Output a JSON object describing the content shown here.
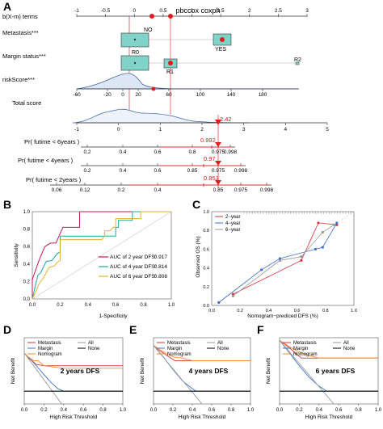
{
  "panels": {
    "A": "A",
    "B": "B",
    "C": "C",
    "D": "D",
    "E": "E",
    "F": "F"
  },
  "colors": {
    "box_fill": "#7fd3c8",
    "box_stroke": "#333333",
    "density_fill": "#dde6f3",
    "density_stroke": "#3f66b5",
    "point_red": "#e31a1c",
    "seg_red": "#d9333a",
    "blue": "#3f6fd0",
    "orange": "#f28e2b",
    "grey": "#999999",
    "black": "#000000",
    "roc_magenta": "#c2185b",
    "roc_teal": "#1fa79b",
    "roc_yellow": "#e6b12a"
  },
  "chart_data": [
    {
      "panel": "A",
      "type": "nomogram",
      "title": "pbccox coxph",
      "points_label": "b(X-m) terms",
      "points_ticks": [
        "-1",
        "-0.5",
        "0",
        "0.5",
        "1",
        "1.5",
        "2",
        "2.5",
        "3"
      ],
      "variables": [
        {
          "name": "Metastasis***",
          "levels": [
            "NO",
            "YES"
          ]
        },
        {
          "name": "Margin status***",
          "levels": [
            "R0",
            "R1",
            "R2"
          ]
        },
        {
          "name": "riskScore***",
          "ticks": [
            "-60",
            "-20",
            "0",
            "20",
            "60",
            "100",
            "140",
            "180"
          ]
        }
      ],
      "total_score": {
        "label": "Total score",
        "ticks": [
          "-1",
          "0",
          "1",
          "2",
          "3",
          "4",
          "5"
        ],
        "value_label": "2.42"
      },
      "survival_axes": [
        {
          "label": "Pr( futime < 6years )",
          "ticks": [
            "0.2",
            "0.4",
            "0.6",
            "0.8",
            "0.975",
            "0.998"
          ],
          "value_label": "0.992"
        },
        {
          "label": "Pr( futime < 4years )",
          "ticks": [
            "0.2",
            "0.4",
            "0.6",
            "0.85",
            "0.975",
            "0.998"
          ],
          "value_label": "0.97"
        },
        {
          "label": "Pr( futime < 2years )",
          "ticks": [
            "0.06",
            "0.12",
            "0.2",
            "0.4",
            "0.85",
            "0.975",
            "0.998"
          ],
          "value_label": "0.853"
        }
      ]
    },
    {
      "panel": "B",
      "type": "line",
      "xlabel": "1-Specificity",
      "ylabel": "Sensitivity",
      "xlim": [
        0,
        1
      ],
      "ylim": [
        0,
        1
      ],
      "ticks": [
        "0.0",
        "0.2",
        "0.4",
        "0.6",
        "0.8",
        "1.0"
      ],
      "series": [
        {
          "name": "AUC of 2 year DFS:",
          "auc": "0.917",
          "color_key": "roc_magenta",
          "x": [
            0,
            0,
            0.03,
            0.05,
            0.09,
            0.13,
            0.17,
            0.22,
            0.22,
            0.28,
            0.34,
            0.34,
            0.6,
            1.0
          ],
          "y": [
            0,
            0.22,
            0.36,
            0.45,
            0.6,
            0.64,
            0.64,
            0.82,
            0.82,
            0.82,
            0.82,
            1.0,
            1.0,
            1.0
          ]
        },
        {
          "name": "AUC of 4 year DFS:",
          "auc": "0.814",
          "color_key": "roc_teal",
          "x": [
            0,
            0.02,
            0.04,
            0.06,
            0.1,
            0.14,
            0.18,
            0.2,
            0.2,
            0.5,
            0.6,
            0.6,
            0.62,
            0.62,
            0.7,
            0.72,
            0.72,
            1.0
          ],
          "y": [
            0,
            0.14,
            0.27,
            0.3,
            0.43,
            0.44,
            0.52,
            0.54,
            0.72,
            0.72,
            0.72,
            0.82,
            0.82,
            0.9,
            0.9,
            0.9,
            1.0,
            1.0
          ]
        },
        {
          "name": "AUC of 6 year DFS:",
          "auc": "0.808",
          "color_key": "roc_yellow",
          "x": [
            0,
            0.03,
            0.05,
            0.08,
            0.12,
            0.16,
            0.18,
            0.2,
            0.2,
            0.46,
            0.5,
            0.52,
            0.52,
            0.56,
            0.58,
            0.6,
            0.6,
            0.78,
            0.78,
            1.0
          ],
          "y": [
            0,
            0.1,
            0.18,
            0.24,
            0.36,
            0.38,
            0.42,
            0.44,
            0.68,
            0.68,
            0.68,
            0.72,
            0.78,
            0.78,
            0.82,
            0.82,
            0.92,
            0.92,
            1.0,
            1.0
          ]
        }
      ]
    },
    {
      "panel": "C",
      "type": "line",
      "xlabel": "Nomogram−prediced DFS (%)",
      "ylabel": "Observed OS (%)",
      "xlim": [
        0,
        1
      ],
      "ylim": [
        0,
        1
      ],
      "ticks": [
        "0.0",
        "0.2",
        "0.4",
        "0.6",
        "0.8",
        "1.0"
      ],
      "series": [
        {
          "name": "2−year",
          "color_key": "seg_red",
          "x": [
            0.15,
            0.63,
            0.75,
            0.88
          ],
          "y": [
            0.12,
            0.48,
            0.88,
            0.86
          ]
        },
        {
          "name": "4−year",
          "color_key": "blue",
          "x": [
            0.05,
            0.35,
            0.48,
            0.73,
            0.78,
            0.88
          ],
          "y": [
            0.03,
            0.38,
            0.5,
            0.6,
            0.62,
            0.88
          ]
        },
        {
          "name": "6−year",
          "color_key": "grey",
          "x": [
            0.15,
            0.48,
            0.63,
            0.78,
            0.86
          ],
          "y": [
            0.1,
            0.48,
            0.52,
            0.78,
            0.86
          ]
        }
      ]
    },
    {
      "panel": "D",
      "type": "line",
      "label": "2 years DFS",
      "xlabel": "High Risk Threshold",
      "ylabel": "Net Benefit",
      "xlim": [
        0,
        1
      ],
      "xticks": [
        "0.0",
        "0.2",
        "0.4",
        "0.6",
        "0.8",
        "1.0"
      ],
      "legend": [
        "Metastasis",
        "Margin",
        "Nomogram",
        "All",
        "None"
      ],
      "series": [
        {
          "name": "Metastasis",
          "color_key": "seg_red",
          "x": [
            0,
            0.04,
            0.08,
            0.12,
            0.2,
            0.4,
            0.6,
            0.8,
            1.0
          ],
          "y": [
            0.3,
            0.26,
            0.24,
            0.21,
            0.2,
            0.2,
            0.2,
            0.2,
            0.2
          ]
        },
        {
          "name": "Margin",
          "color_key": "blue",
          "x": [
            0,
            0.1,
            0.2,
            0.27,
            0.34,
            0.4,
            1.0
          ],
          "y": [
            0.3,
            0.22,
            0.13,
            0.07,
            0.02,
            0,
            0
          ]
        },
        {
          "name": "Nomogram",
          "color_key": "orange",
          "x": [
            0,
            0.04,
            0.1,
            0.14,
            0.2,
            0.3,
            0.4,
            0.5,
            0.6,
            0.7,
            0.8,
            0.9,
            1.0
          ],
          "y": [
            0.3,
            0.27,
            0.24,
            0.24,
            0.2,
            0.19,
            0.18,
            0.18,
            0.18,
            0.18,
            0.18,
            0.18,
            0.18
          ]
        },
        {
          "name": "All",
          "color_key": "grey",
          "x": [
            0,
            0.38
          ],
          "y": [
            0.3,
            -0.1
          ]
        },
        {
          "name": "None",
          "color_key": "black",
          "x": [
            0,
            1.0
          ],
          "y": [
            0,
            0
          ]
        }
      ]
    },
    {
      "panel": "E",
      "type": "line",
      "label": "4 years DFS",
      "xlabel": "High Risk Threshold",
      "ylabel": "Net Benefit",
      "xlim": [
        0,
        1
      ],
      "xticks": [
        "0.0",
        "0.2",
        "0.4",
        "0.6",
        "0.8",
        "1.0"
      ],
      "legend": [
        "Metastasis",
        "Margin",
        "Nomogram",
        "All",
        "None"
      ],
      "series": [
        {
          "name": "Metastasis",
          "color_key": "seg_red",
          "x": [
            0,
            0.04,
            0.1,
            0.16,
            0.22,
            0.4,
            0.6,
            0.8,
            1.0
          ],
          "y": [
            0.36,
            0.33,
            0.3,
            0.27,
            0.24,
            0.24,
            0.24,
            0.24,
            0.24
          ]
        },
        {
          "name": "Margin",
          "color_key": "blue",
          "x": [
            0,
            0.1,
            0.2,
            0.3,
            0.4,
            0.44,
            1.0
          ],
          "y": [
            0.36,
            0.27,
            0.17,
            0.08,
            0.02,
            0,
            0
          ]
        },
        {
          "name": "Nomogram",
          "color_key": "orange",
          "x": [
            0,
            0.06,
            0.12,
            0.2,
            0.3,
            0.4,
            0.5,
            0.6,
            0.7,
            0.8,
            0.9,
            1.0
          ],
          "y": [
            0.36,
            0.33,
            0.3,
            0.27,
            0.26,
            0.24,
            0.24,
            0.24,
            0.24,
            0.24,
            0.24,
            0.24
          ]
        },
        {
          "name": "All",
          "color_key": "grey",
          "x": [
            0,
            0.5
          ],
          "y": [
            0.36,
            -0.1
          ]
        },
        {
          "name": "None",
          "color_key": "black",
          "x": [
            0,
            1.0
          ],
          "y": [
            0,
            0
          ]
        }
      ]
    },
    {
      "panel": "F",
      "type": "line",
      "label": "6 years DFS",
      "xlabel": "High Risk Threshold",
      "ylabel": "Net Benefit",
      "xlim": [
        0,
        1
      ],
      "xticks": [
        "0.0",
        "0.2",
        "0.4",
        "0.6",
        "0.8",
        "1.0"
      ],
      "legend": [
        "Metastasis",
        "Margin",
        "Nomogram",
        "All",
        "None"
      ],
      "series": [
        {
          "name": "Metastasis",
          "color_key": "seg_red",
          "x": [
            0,
            0.05,
            0.1,
            0.16,
            0.22,
            0.4,
            0.6,
            0.8,
            1.0
          ],
          "y": [
            0.4,
            0.37,
            0.34,
            0.3,
            0.26,
            0.26,
            0.26,
            0.26,
            0.26
          ]
        },
        {
          "name": "Margin",
          "color_key": "blue",
          "x": [
            0,
            0.1,
            0.2,
            0.3,
            0.4,
            0.48,
            1.0
          ],
          "y": [
            0.4,
            0.3,
            0.2,
            0.11,
            0.04,
            0,
            0
          ]
        },
        {
          "name": "Nomogram",
          "color_key": "orange",
          "x": [
            0,
            0.06,
            0.12,
            0.2,
            0.3,
            0.4,
            0.5,
            0.6,
            0.7,
            0.8,
            0.9,
            1.0
          ],
          "y": [
            0.4,
            0.37,
            0.34,
            0.31,
            0.28,
            0.26,
            0.26,
            0.26,
            0.26,
            0.26,
            0.26,
            0.26
          ]
        },
        {
          "name": "All",
          "color_key": "grey",
          "x": [
            0,
            0.55
          ],
          "y": [
            0.4,
            -0.1
          ]
        },
        {
          "name": "None",
          "color_key": "black",
          "x": [
            0,
            1.0
          ],
          "y": [
            0,
            0
          ]
        }
      ]
    }
  ]
}
